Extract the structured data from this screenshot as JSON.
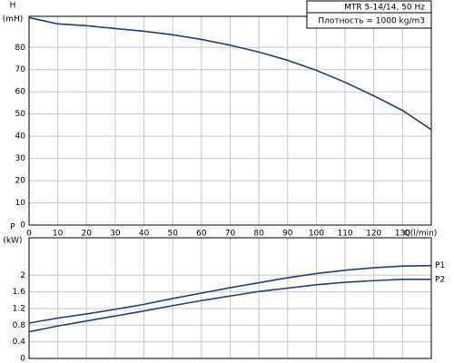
{
  "chart_data": [
    {
      "type": "line",
      "annotations": [
        "MTR 5-14/14, 50 Hz",
        "Плотность = 1000 kg/m3"
      ],
      "y_label": "H",
      "y_unit": "(mH)",
      "x_label": "Q(l/min)",
      "x": [
        0,
        10,
        20,
        30,
        40,
        50,
        60,
        70,
        80,
        90,
        100,
        110,
        120,
        130,
        140
      ],
      "xlim": [
        0,
        140
      ],
      "xticks": [
        0,
        10,
        20,
        30,
        40,
        50,
        60,
        70,
        80,
        90,
        100,
        110,
        120,
        130
      ],
      "ylim": [
        0,
        94
      ],
      "yticks": [
        0,
        10,
        20,
        30,
        40,
        50,
        60,
        70,
        80
      ],
      "grid": true,
      "series": [
        {
          "color": "#1f3f7a",
          "values": [
            93.4,
            90.6,
            89.8,
            88.5,
            87.3,
            85.7,
            83.6,
            81,
            77.9,
            74.2,
            69.7,
            64.3,
            58.2,
            51.6,
            43
          ]
        }
      ]
    },
    {
      "type": "line",
      "y_label": "P",
      "y_unit": "(kW)",
      "x": [
        0,
        10,
        20,
        30,
        40,
        50,
        60,
        70,
        80,
        90,
        100,
        110,
        120,
        130,
        140
      ],
      "xlim": [
        0,
        140
      ],
      "ylim": [
        0,
        2.9
      ],
      "yticks": [
        0,
        0.4,
        0.8,
        1.2,
        1.6,
        2
      ],
      "grid": true,
      "series": [
        {
          "name": "P1",
          "color": "#1f3f7a",
          "values": [
            0.85,
            0.97,
            1.07,
            1.18,
            1.3,
            1.44,
            1.57,
            1.7,
            1.82,
            1.94,
            2.04,
            2.12,
            2.18,
            2.22,
            2.23
          ]
        },
        {
          "name": "P2",
          "color": "#1f3f7a",
          "values": [
            0.64,
            0.78,
            0.9,
            1.02,
            1.14,
            1.27,
            1.39,
            1.5,
            1.61,
            1.69,
            1.77,
            1.83,
            1.87,
            1.9,
            1.9
          ]
        }
      ]
    }
  ]
}
